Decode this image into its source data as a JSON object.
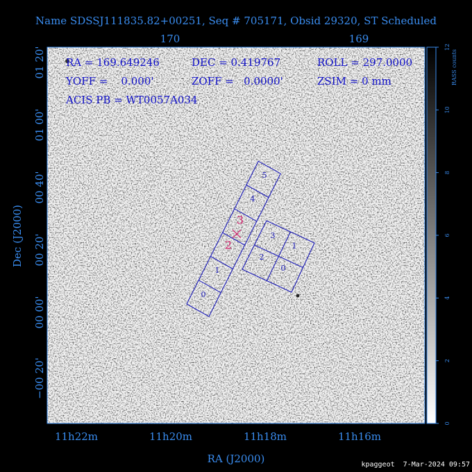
{
  "title": "Name SDSSJ111835.82+00251, Seq # 705171, Obsid 29320, ST Scheduled",
  "plot": {
    "x_axis_title": "RA (J2000)",
    "y_axis_title": "Dec (J2000)",
    "top_ticks": [
      "170",
      "169"
    ],
    "bottom_ticks": [
      "11h22m",
      "11h20m",
      "11h18m",
      "11h16m"
    ],
    "left_ticks": [
      "01 20'",
      "01 00'",
      "00 40'",
      "00 20'",
      "00 00'",
      "−00 20'"
    ],
    "info": [
      "RA = 169.649246",
      "DEC = 0.419767",
      "ROLL = 297.0000",
      "YOFF =    0.000'",
      "ZOFF =   0.0000'",
      "ZSIM = 0 mm",
      "ACIS PB = WT0057A034"
    ],
    "strip_chips": [
      "0",
      "1",
      "4",
      "5"
    ],
    "aim_chips": [
      "2",
      "3"
    ],
    "block_chips": [
      "3",
      "1",
      "2",
      "0"
    ]
  },
  "colorbar": {
    "label": "RASS counts",
    "ticks": [
      "0",
      "2",
      "4",
      "6",
      "8",
      "10",
      "12"
    ]
  },
  "footer": "kpaggeot  7-Mar-2024 09:57"
}
